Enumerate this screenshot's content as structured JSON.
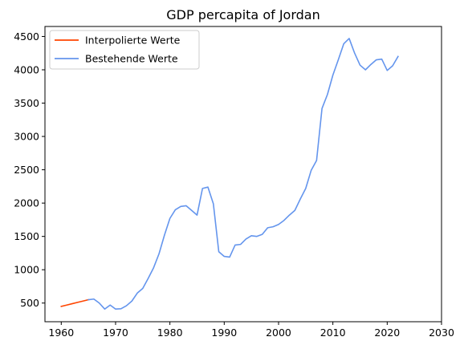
{
  "chart_data": {
    "type": "line",
    "title": "GDP percapita of Jordan",
    "xlabel": "",
    "ylabel": "",
    "xlim": [
      1957,
      2030
    ],
    "ylim": [
      220,
      4650
    ],
    "xticks": [
      1960,
      1970,
      1980,
      1990,
      2000,
      2010,
      2020,
      2030
    ],
    "yticks": [
      500,
      1000,
      1500,
      2000,
      2500,
      3000,
      3500,
      4000,
      4500
    ],
    "grid": false,
    "legend_position": "top-left",
    "series": [
      {
        "name": "Interpolierte Werte",
        "color": "#ff4500",
        "x": [
          1960,
          1961,
          1962,
          1963,
          1964,
          1965
        ],
        "y": [
          450,
          470,
          490,
          510,
          530,
          550
        ]
      },
      {
        "name": "Bestehende Werte",
        "color": "#6495ed",
        "x": [
          1965,
          1966,
          1967,
          1968,
          1969,
          1970,
          1971,
          1972,
          1973,
          1974,
          1975,
          1976,
          1977,
          1978,
          1979,
          1980,
          1981,
          1982,
          1983,
          1984,
          1985,
          1986,
          1987,
          1988,
          1989,
          1990,
          1991,
          1992,
          1993,
          1994,
          1995,
          1996,
          1997,
          1998,
          1999,
          2000,
          2001,
          2002,
          2003,
          2004,
          2005,
          2006,
          2007,
          2008,
          2009,
          2010,
          2011,
          2012,
          2013,
          2014,
          2015,
          2016,
          2017,
          2018,
          2019,
          2020,
          2021,
          2022
        ],
        "y": [
          550,
          560,
          500,
          410,
          470,
          410,
          415,
          460,
          530,
          650,
          720,
          870,
          1030,
          1240,
          1520,
          1770,
          1900,
          1950,
          1960,
          1890,
          1820,
          2220,
          2240,
          1990,
          1270,
          1200,
          1190,
          1370,
          1380,
          1460,
          1510,
          1500,
          1530,
          1630,
          1645,
          1680,
          1740,
          1820,
          1890,
          2060,
          2220,
          2490,
          2640,
          3420,
          3630,
          3920,
          4150,
          4390,
          4470,
          4250,
          4070,
          4000,
          4080,
          4150,
          4160,
          3990,
          4060,
          4200
        ]
      }
    ]
  }
}
